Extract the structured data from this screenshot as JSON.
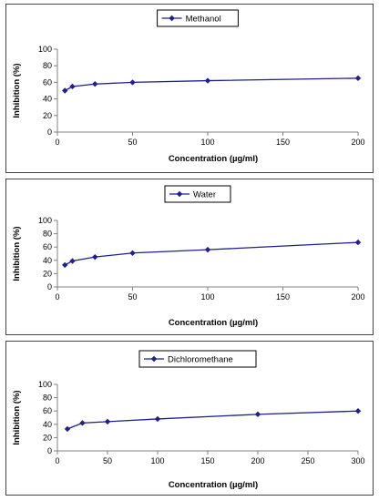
{
  "chart_data": [
    {
      "type": "line",
      "legend": "Methanol",
      "legend_position": "top-center",
      "series": [
        {
          "name": "Methanol",
          "x": [
            5,
            10,
            25,
            50,
            100,
            200
          ],
          "y": [
            50,
            55,
            58,
            60,
            62,
            65
          ]
        }
      ],
      "xlabel": "Concentration (µg/ml)",
      "ylabel": "Inhibition (%)",
      "xlim": [
        0,
        200
      ],
      "ylim": [
        0,
        100
      ],
      "xticks": [
        0,
        50,
        100,
        150,
        200
      ],
      "yticks": [
        0,
        20,
        40,
        60,
        80,
        100
      ],
      "grid": false,
      "color": "#1f1f8f"
    },
    {
      "type": "line",
      "legend": "Water",
      "legend_position": "top-center",
      "series": [
        {
          "name": "Water",
          "x": [
            5,
            10,
            25,
            50,
            100,
            200
          ],
          "y": [
            33,
            39,
            45,
            51,
            56,
            67
          ]
        }
      ],
      "xlabel": "Concentration (µg/ml)",
      "ylabel": "Inhibition (%)",
      "xlim": [
        0,
        200
      ],
      "ylim": [
        0,
        100
      ],
      "xticks": [
        0,
        50,
        100,
        150,
        200
      ],
      "yticks": [
        0,
        20,
        40,
        60,
        80,
        100
      ],
      "grid": false,
      "color": "#1f1f8f"
    },
    {
      "type": "line",
      "legend": "Dichloromethane",
      "legend_position": "top-center",
      "series": [
        {
          "name": "Dichloromethane",
          "x": [
            10,
            25,
            50,
            100,
            200,
            300
          ],
          "y": [
            33,
            42,
            44,
            48,
            55,
            60
          ]
        }
      ],
      "xlabel": "Concentration (µg/ml)",
      "ylabel": "Inhibition (%)",
      "xlim": [
        0,
        300
      ],
      "ylim": [
        0,
        100
      ],
      "xticks": [
        0,
        50,
        100,
        150,
        200,
        250,
        300
      ],
      "yticks": [
        0,
        20,
        40,
        60,
        80,
        100
      ],
      "grid": false,
      "color": "#1f1f8f"
    }
  ]
}
